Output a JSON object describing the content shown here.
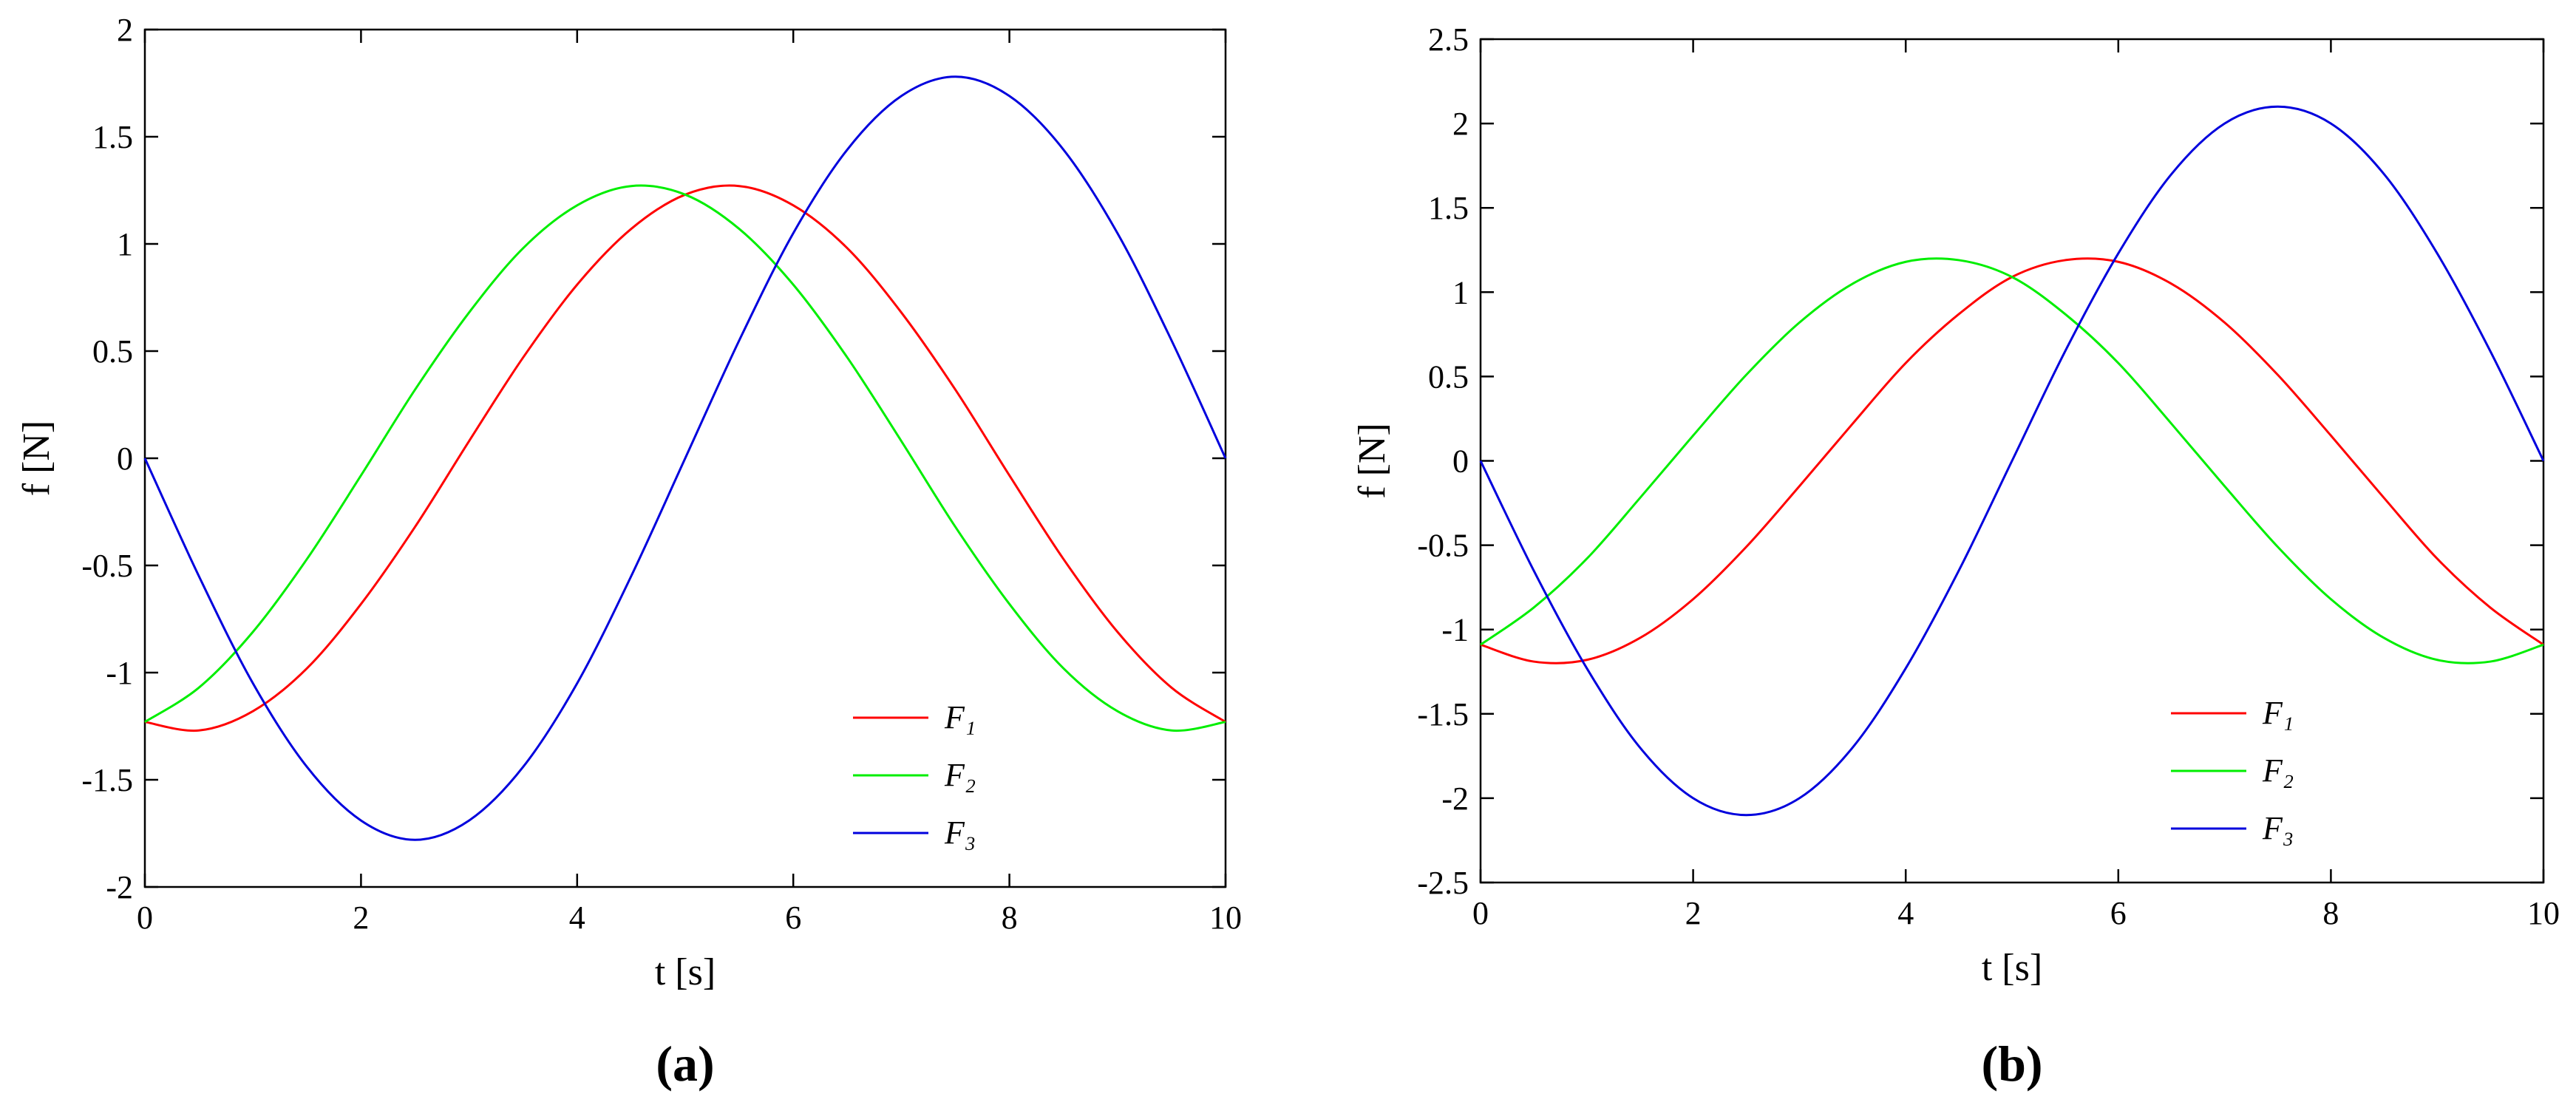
{
  "chart_data": [
    {
      "type": "line",
      "caption": "(a)",
      "xlabel": "t [s]",
      "ylabel": "f [N]",
      "legend": "lower right",
      "x": [
        0,
        0.5,
        1,
        1.5,
        2,
        2.5,
        3,
        3.5,
        4,
        4.5,
        5,
        5.5,
        6,
        6.5,
        7,
        7.5,
        8,
        8.5,
        9,
        9.5,
        10
      ],
      "xlim": [
        0,
        10
      ],
      "xticks": [
        0,
        2,
        4,
        6,
        8,
        10
      ],
      "ylim": [
        -2,
        2
      ],
      "yticks": [
        -2,
        -1.5,
        -1,
        -0.5,
        0,
        0.5,
        1,
        1.5,
        2
      ],
      "series": [
        {
          "name": "F₁",
          "color": "#ff0000",
          "values": [
            -1.23,
            -1.27,
            -1.18,
            -0.98,
            -0.68,
            -0.32,
            0.08,
            0.47,
            0.81,
            1.07,
            1.23,
            1.27,
            1.18,
            0.98,
            0.68,
            0.32,
            -0.08,
            -0.47,
            -0.81,
            -1.07,
            -1.23
          ]
        },
        {
          "name": "F₂",
          "color": "#00ee00",
          "values": [
            -1.23,
            -1.07,
            -0.81,
            -0.47,
            -0.08,
            0.32,
            0.68,
            0.98,
            1.18,
            1.27,
            1.23,
            1.07,
            0.81,
            0.47,
            0.08,
            -0.32,
            -0.68,
            -0.98,
            -1.18,
            -1.27,
            -1.23
          ]
        },
        {
          "name": "F₃",
          "color": "#0000dd",
          "values": [
            0,
            -0.55,
            -1.05,
            -1.44,
            -1.69,
            -1.78,
            -1.69,
            -1.44,
            -1.05,
            -0.55,
            0,
            0.55,
            1.05,
            1.44,
            1.69,
            1.78,
            1.69,
            1.44,
            1.05,
            0.55,
            0
          ]
        }
      ]
    },
    {
      "type": "line",
      "caption": "(b)",
      "xlabel": "t [s]",
      "ylabel": "f [N]",
      "legend": "lower right",
      "x": [
        0,
        0.5,
        1,
        1.5,
        2,
        2.5,
        3,
        3.5,
        4,
        4.5,
        5,
        5.5,
        6,
        6.5,
        7,
        7.5,
        8,
        8.5,
        9,
        9.5,
        10
      ],
      "xlim": [
        0,
        10
      ],
      "xticks": [
        0,
        2,
        4,
        6,
        8,
        10
      ],
      "ylim": [
        -2.5,
        2.5
      ],
      "yticks": [
        -2.5,
        -2,
        -1.5,
        -1,
        -0.5,
        0,
        0.5,
        1,
        1.5,
        2,
        2.5
      ],
      "series": [
        {
          "name": "F₁",
          "color": "#ff0000",
          "values": [
            -1.09,
            -1.19,
            -1.18,
            -1.05,
            -0.82,
            -0.51,
            -0.15,
            0.22,
            0.58,
            0.87,
            1.09,
            1.19,
            1.18,
            1.05,
            0.82,
            0.51,
            0.15,
            -0.22,
            -0.58,
            -0.87,
            -1.09
          ]
        },
        {
          "name": "F₂",
          "color": "#00ee00",
          "values": [
            -1.09,
            -0.87,
            -0.58,
            -0.22,
            0.15,
            0.51,
            0.82,
            1.05,
            1.18,
            1.19,
            1.09,
            0.87,
            0.58,
            0.22,
            -0.15,
            -0.51,
            -0.82,
            -1.05,
            -1.18,
            -1.19,
            -1.09
          ]
        },
        {
          "name": "F₃",
          "color": "#0000dd",
          "values": [
            0,
            -0.65,
            -1.23,
            -1.7,
            -2,
            -2.1,
            -2,
            -1.7,
            -1.23,
            -0.65,
            0,
            0.65,
            1.23,
            1.7,
            2,
            2.1,
            2,
            1.7,
            1.23,
            0.65,
            0
          ]
        }
      ]
    }
  ]
}
